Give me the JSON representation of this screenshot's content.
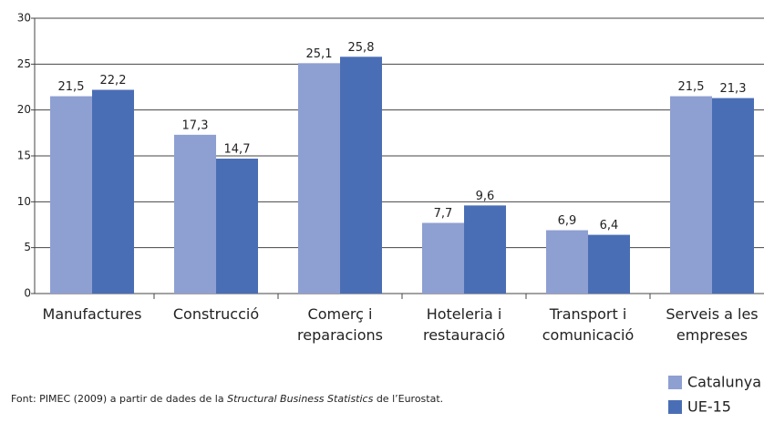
{
  "chart_data": {
    "type": "bar",
    "categories": [
      [
        "Manufactures"
      ],
      [
        "Construcció"
      ],
      [
        "Comerç i",
        "reparacions"
      ],
      [
        "Hoteleria i",
        "restauració"
      ],
      [
        "Transport i",
        "comunicació"
      ],
      [
        "Serveis a les",
        "empreses"
      ]
    ],
    "series": [
      {
        "name": "Catalunya",
        "color": "#8e9fd1",
        "values": [
          21.5,
          17.3,
          25.1,
          7.7,
          6.9,
          21.5
        ],
        "value_labels": [
          "21,5",
          "17,3",
          "25,1",
          "7,7",
          "6,9",
          "21,5"
        ]
      },
      {
        "name": "UE-15",
        "color": "#4a6eb5",
        "values": [
          22.2,
          14.7,
          25.8,
          9.6,
          6.4,
          21.3
        ],
        "value_labels": [
          "22,2",
          "14,7",
          "25,8",
          "9,6",
          "6,4",
          "21,3"
        ]
      }
    ],
    "ylim": [
      0,
      30
    ],
    "yticks": [
      0,
      5,
      10,
      15,
      20,
      25,
      30
    ],
    "grid": true,
    "note": [
      "Font: PIMEC (2009) a partir de dades de la ",
      "Structural Business Statistics",
      " de l’Eurostat."
    ]
  }
}
